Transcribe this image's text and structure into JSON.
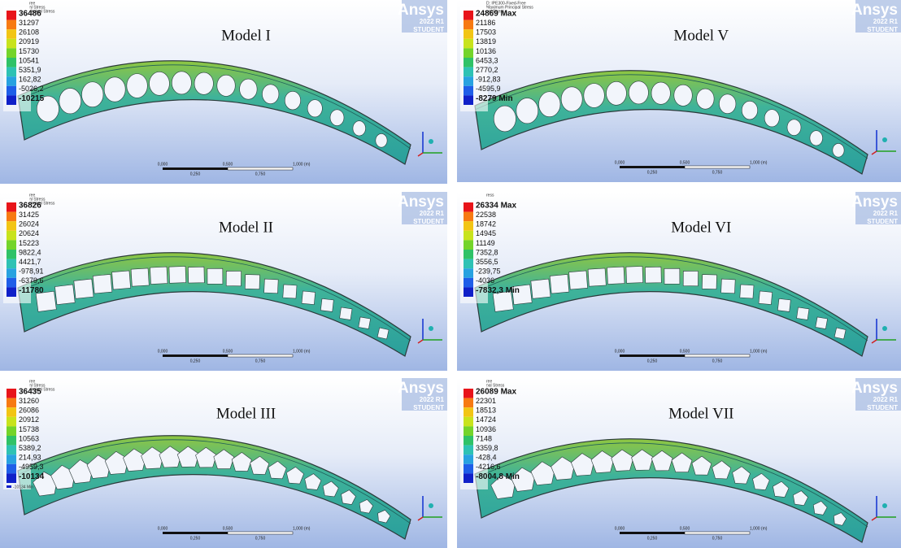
{
  "panels": [
    {
      "title": "Model I",
      "header": [
        "ree",
        "al Stress",
        "rincipal Stress"
      ],
      "legend": [
        "36486",
        "31297",
        "26108",
        "20919",
        "15730",
        "10541",
        "5351,9",
        "162,82",
        "-5026,2",
        "-10215"
      ],
      "logo": {
        "brand": "Ansys",
        "version": "2022 R1",
        "edition": "STUDENT"
      },
      "scale": {
        "top": [
          "0,000",
          "0,500",
          "1,000 (m)"
        ],
        "bottom": [
          "0,250",
          "0,750"
        ]
      }
    },
    {
      "title": "Model V",
      "header": [
        "D: IPE300-Fixed-Free",
        "Maximum Principal Stress",
        "pal Stress"
      ],
      "legend": [
        "24869 Max",
        "21186",
        "17503",
        "13819",
        "10136",
        "6453,3",
        "2770,2",
        "-912,83",
        "-4595,9",
        "-8279 Min"
      ],
      "logo": {
        "brand": "Ansys",
        "version": "2022 R1",
        "edition": "STUDENT"
      },
      "scale": {
        "top": [
          "0,000",
          "0,500",
          "1,000 (m)"
        ],
        "bottom": [
          "0,250",
          "0,750"
        ]
      }
    },
    {
      "title": "Model II",
      "header": [
        "ree",
        "al Stress",
        "rincipal Stress"
      ],
      "legend": [
        "36826",
        "31425",
        "26024",
        "20624",
        "15223",
        "9822,4",
        "4421,7",
        "-978,91",
        "-6379,6",
        "-11780"
      ],
      "logo": {
        "brand": "Ansys",
        "version": "2022 R1",
        "edition": "STUDENT"
      },
      "scale": {
        "top": [
          "0,000",
          "0,500",
          "1,000 (m)"
        ],
        "bottom": [
          "0,250",
          "0,750"
        ]
      }
    },
    {
      "title": "Model VI",
      "header": [
        "ress"
      ],
      "legend": [
        "26334 Max",
        "22538",
        "18742",
        "14945",
        "11149",
        "7352,8",
        "3556,5",
        "-239,75",
        "-4036",
        "-7832,3 Min"
      ],
      "logo": {
        "brand": "Ansys",
        "version": "2022 R1",
        "edition": "STUDENT"
      },
      "scale": {
        "top": [
          "0,000",
          "0,500",
          "1,000 (m)"
        ],
        "bottom": [
          "0,250",
          "0,750"
        ]
      }
    },
    {
      "title": "Model III",
      "header": [
        "ree",
        "al Stress",
        "rincipal Stress"
      ],
      "legend": [
        "36435",
        "31260",
        "26086",
        "20912",
        "15738",
        "10563",
        "5389,2",
        "214,93",
        "-4959,3",
        "-10134"
      ],
      "min_marker": "-10134 Min",
      "logo": {
        "brand": "Ansys",
        "version": "2022 R1",
        "edition": "STUDENT"
      },
      "scale": {
        "top": [
          "0,000",
          "0,500",
          "1,000 (m)"
        ],
        "bottom": [
          "0,250",
          "0,750"
        ]
      }
    },
    {
      "title": "Model VII",
      "header": [
        "ree",
        "pal Stress"
      ],
      "legend": [
        "26089 Max",
        "22301",
        "18513",
        "14724",
        "10936",
        "7148",
        "3359,8",
        "-428,4",
        "-4216,6",
        "-8004,8 Min"
      ],
      "logo": {
        "brand": "Ansys",
        "version": "2022 R1",
        "edition": "STUDENT"
      },
      "scale": {
        "top": [
          "0,000",
          "0,500",
          "1,000 (m)"
        ],
        "bottom": [
          "0,250",
          "0,750"
        ]
      }
    }
  ]
}
